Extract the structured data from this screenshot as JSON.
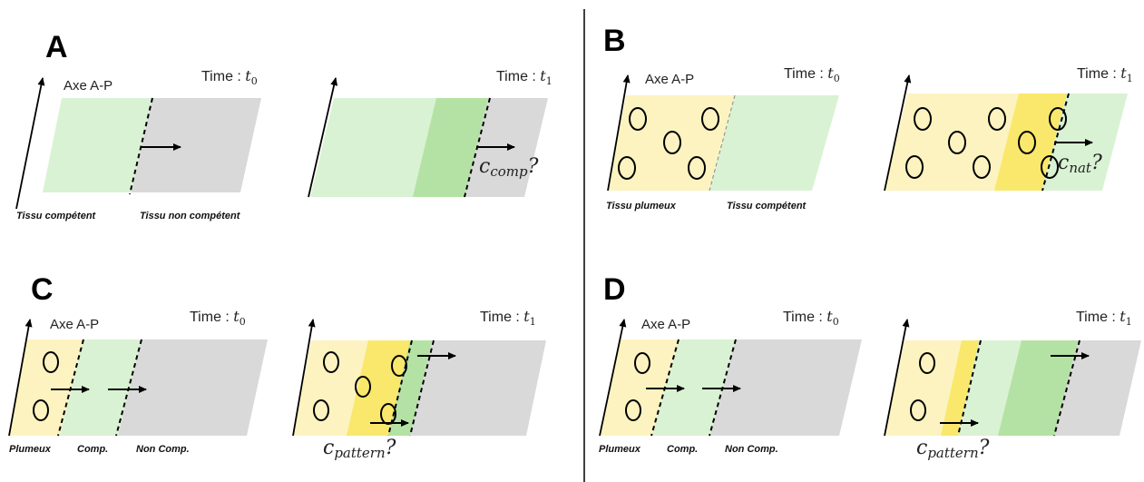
{
  "colors": {
    "competent": "#d9f2d3",
    "competent_dark": "#b4e2a4",
    "non_competent": "#d9d9d9",
    "plumeux": "#fdf3c0",
    "plumeux_dark": "#f9e86c",
    "ink": "#000000"
  },
  "panels": {
    "A": {
      "letter": "A",
      "axis_label": "Axe A-P",
      "time0": {
        "prefix": "Time : ",
        "var": "t",
        "sub": "0"
      },
      "time1": {
        "prefix": "Time : ",
        "var": "t",
        "sub": "1"
      },
      "tissue_left": "Tissu compétent",
      "tissue_right": "Tissu non compétent",
      "speed": {
        "var": "c",
        "sub": "comp",
        "suffix": "?"
      }
    },
    "B": {
      "letter": "B",
      "axis_label": "Axe A-P",
      "time0": {
        "prefix": "Time : ",
        "var": "t",
        "sub": "0"
      },
      "time1": {
        "prefix": "Time : ",
        "var": "t",
        "sub": "1"
      },
      "tissue_left": "Tissu plumeux",
      "tissue_right": "Tissu compétent",
      "speed": {
        "var": "c",
        "sub": "nat",
        "suffix": "?"
      }
    },
    "C": {
      "letter": "C",
      "axis_label": "Axe A-P",
      "time0": {
        "prefix": "Time : ",
        "var": "t",
        "sub": "0"
      },
      "time1": {
        "prefix": "Time : ",
        "var": "t",
        "sub": "1"
      },
      "tissue_1": "Plumeux",
      "tissue_2": "Comp.",
      "tissue_3": "Non Comp.",
      "speed": {
        "var": "c",
        "sub": "pattern",
        "suffix": "?"
      }
    },
    "D": {
      "letter": "D",
      "axis_label": "Axe A-P",
      "time0": {
        "prefix": "Time : ",
        "var": "t",
        "sub": "0"
      },
      "time1": {
        "prefix": "Time : ",
        "var": "t",
        "sub": "1"
      },
      "tissue_1": "Plumeux",
      "tissue_2": "Comp.",
      "tissue_3": "Non Comp.",
      "speed": {
        "var": "c",
        "sub": "pattern",
        "suffix": "?"
      }
    }
  }
}
